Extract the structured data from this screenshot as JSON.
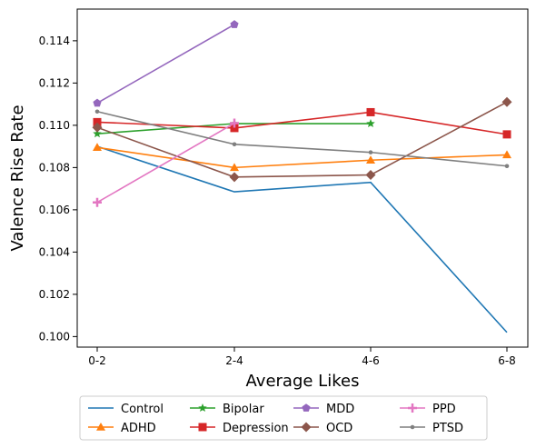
{
  "chart_data": {
    "type": "line",
    "title": "",
    "xlabel": "Average Likes",
    "ylabel": "Valence Rise Rate",
    "categories": [
      "0-2",
      "2-4",
      "4-6",
      "6-8"
    ],
    "ylim": [
      0.0995,
      0.1155
    ],
    "yticks": [
      "0.100",
      "0.102",
      "0.104",
      "0.106",
      "0.108",
      "0.110",
      "0.112",
      "0.114"
    ],
    "grid": false,
    "legend_position": "bottom-center",
    "series": [
      {
        "name": "Control",
        "color": "#1f77b4",
        "marker": "none",
        "values": [
          0.109,
          0.10685,
          0.1073,
          0.1002
        ]
      },
      {
        "name": "ADHD",
        "color": "#ff7f0e",
        "marker": "triangle",
        "values": [
          0.10895,
          0.108,
          0.10835,
          0.1086
        ]
      },
      {
        "name": "Bipolar",
        "color": "#2ca02c",
        "marker": "star",
        "values": [
          0.1096,
          0.11008,
          0.11008,
          null
        ]
      },
      {
        "name": "Depression",
        "color": "#d62728",
        "marker": "square",
        "values": [
          0.11015,
          0.10987,
          0.11062,
          0.10957
        ]
      },
      {
        "name": "MDD",
        "color": "#9467bd",
        "marker": "pentagon",
        "values": [
          0.11105,
          0.11477,
          null,
          null
        ]
      },
      {
        "name": "OCD",
        "color": "#8c564b",
        "marker": "diamond",
        "values": [
          0.1099,
          0.10755,
          0.10765,
          0.1111
        ]
      },
      {
        "name": "PPD",
        "color": "#e377c2",
        "marker": "plus",
        "values": [
          0.10635,
          0.1101,
          null,
          null
        ]
      },
      {
        "name": "PTSD",
        "color": "#7f7f7f",
        "marker": "circle",
        "values": [
          0.11065,
          0.1091,
          0.10872,
          0.10807
        ]
      }
    ]
  }
}
